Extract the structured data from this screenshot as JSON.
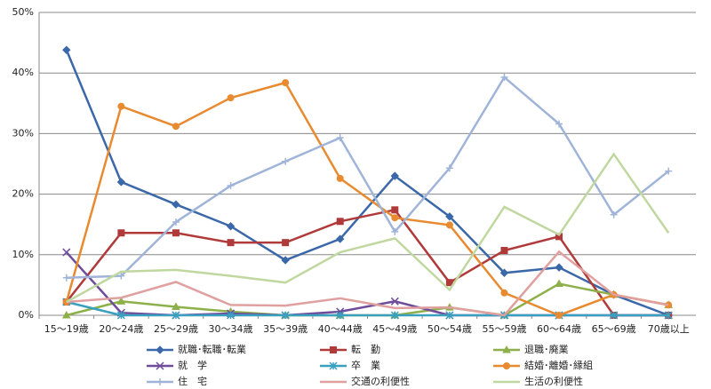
{
  "chart_data": {
    "type": "line",
    "categories": [
      "15〜19歳",
      "20〜24歳",
      "25〜29歳",
      "30〜34歳",
      "35〜39歳",
      "40〜44歳",
      "45〜49歳",
      "50〜54歳",
      "55〜59歳",
      "60〜64歳",
      "65〜69歳",
      "70歳以上"
    ],
    "ylim": [
      0,
      50
    ],
    "yticks": [
      {
        "value": 0,
        "label": "0%"
      },
      {
        "value": 10,
        "label": "10%"
      },
      {
        "value": 20,
        "label": "20%"
      },
      {
        "value": 30,
        "label": "30%"
      },
      {
        "value": 40,
        "label": "40%"
      },
      {
        "value": 50,
        "label": "50%"
      }
    ],
    "grid": true,
    "legend": "bottom",
    "series": [
      {
        "name": "就職･転職･転業",
        "color": "#3b68a8",
        "marker": "diamond",
        "values": [
          43.8,
          22.0,
          18.3,
          14.7,
          9.1,
          12.6,
          23.0,
          16.3,
          7.0,
          7.9,
          3.4,
          0
        ]
      },
      {
        "name": "転　勤",
        "color": "#b03a3a",
        "marker": "square",
        "values": [
          2.2,
          13.6,
          13.6,
          12.0,
          12.0,
          15.5,
          17.4,
          5.4,
          10.7,
          13.0,
          0,
          0
        ]
      },
      {
        "name": "退職･廃業",
        "color": "#8db04a",
        "marker": "triangle",
        "values": [
          0,
          2.3,
          1.4,
          0.6,
          0,
          0,
          0,
          1.3,
          0,
          5.2,
          3.4,
          1.7
        ]
      },
      {
        "name": "就　学",
        "color": "#6f4c9a",
        "marker": "x",
        "values": [
          10.4,
          0.4,
          0,
          0.3,
          0,
          0.6,
          2.3,
          0,
          0,
          0,
          0,
          0
        ]
      },
      {
        "name": "卒　業",
        "color": "#3aa0c0",
        "marker": "star",
        "values": [
          2.2,
          0,
          0,
          0,
          0,
          0,
          0,
          0,
          0,
          0,
          0,
          0
        ]
      },
      {
        "name": "結婚･離婚･縁組",
        "color": "#e88a30",
        "marker": "circle",
        "values": [
          2.2,
          34.5,
          31.2,
          35.9,
          38.4,
          22.6,
          16.1,
          14.9,
          3.7,
          0,
          3.4,
          1.7
        ]
      },
      {
        "name": "住　宅",
        "color": "#9fb4d8",
        "marker": "plus",
        "values": [
          6.2,
          6.5,
          15.4,
          21.4,
          25.4,
          29.3,
          13.8,
          24.3,
          39.3,
          31.6,
          16.6,
          23.8
        ]
      },
      {
        "name": "交通の利便性",
        "color": "#e0a0a0",
        "marker": "none",
        "values": [
          2.2,
          2.9,
          5.5,
          1.7,
          1.6,
          2.8,
          1.2,
          1.3,
          0,
          10.5,
          3.4,
          1.7
        ]
      },
      {
        "name": "生活の利便性",
        "color": "#c0d8a0",
        "marker": "none",
        "values": [
          2.2,
          7.2,
          7.5,
          6.5,
          5.4,
          10.4,
          12.7,
          4.2,
          17.9,
          13.3,
          26.6,
          13.6
        ]
      }
    ]
  }
}
